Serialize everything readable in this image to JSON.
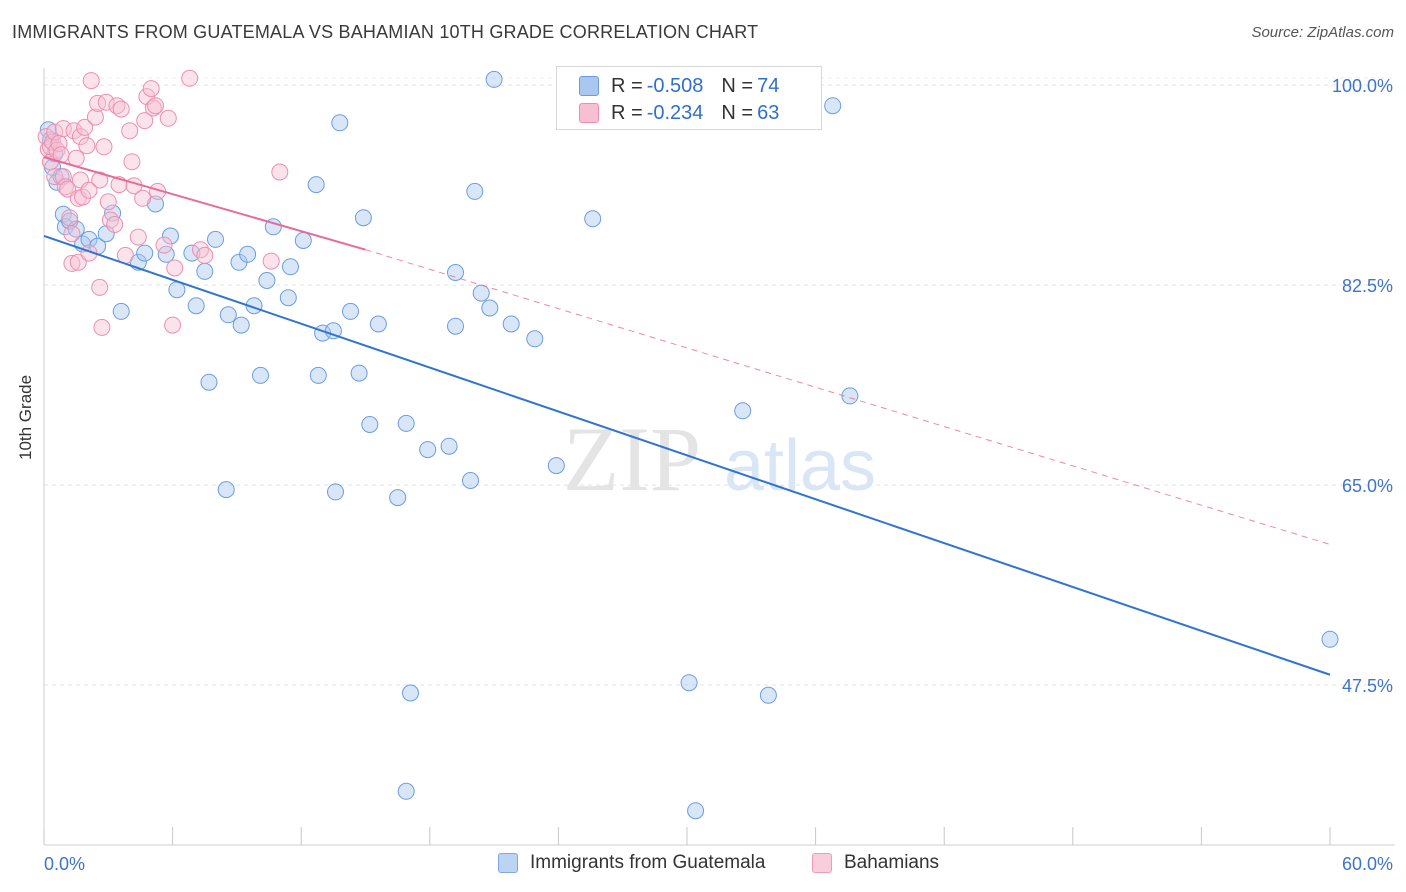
{
  "header": {
    "title": "IMMIGRANTS FROM GUATEMALA VS BAHAMIAN 10TH GRADE CORRELATION CHART",
    "source": "Source: ZipAtlas.com"
  },
  "watermark": {
    "zip": "ZIP",
    "atlas": "atlas"
  },
  "legend": {
    "r_label": "R =",
    "n_label": "N =",
    "entries": [
      {
        "r": "-0.508",
        "n": "74",
        "color": "#a9c7ef",
        "stroke": "#6a9ee0"
      },
      {
        "r": "-0.234",
        "n": "63",
        "color": "#f7c0d2",
        "stroke": "#ee8fb0"
      }
    ]
  },
  "bottom_legend": [
    "Immigrants from Guatemala",
    "Bahamians"
  ],
  "chart_data": {
    "type": "scatter",
    "title": "IMMIGRANTS FROM GUATEMALA VS BAHAMIAN 10TH GRADE CORRELATION CHART",
    "xlabel": "",
    "ylabel": "10th Grade",
    "xlim": [
      0,
      60
    ],
    "ylim": [
      33.5,
      101.5
    ],
    "x_tick_labels": [
      "0.0%",
      "60.0%"
    ],
    "y_ticks": [
      47.5,
      65.0,
      82.5,
      100.0
    ],
    "y_tick_labels": [
      "47.5%",
      "65.0%",
      "82.5%",
      "100.0%"
    ],
    "grid": true,
    "legend_position": "top-center",
    "series": [
      {
        "name": "Immigrants from Guatemala",
        "color": "#a9c7ef",
        "line_color": "#2f74d0",
        "r": -0.508,
        "n": 74,
        "trend": {
          "x": [
            0,
            60
          ],
          "y": [
            86.8,
            48.4
          ]
        },
        "points": [
          [
            0.2,
            96.1
          ],
          [
            0.3,
            95.2
          ],
          [
            0.4,
            92.8
          ],
          [
            0.6,
            91.5
          ],
          [
            0.8,
            92.0
          ],
          [
            0.9,
            88.7
          ],
          [
            1.0,
            87.6
          ],
          [
            1.2,
            88.1
          ],
          [
            1.5,
            87.4
          ],
          [
            1.8,
            86.1
          ],
          [
            2.1,
            86.5
          ],
          [
            2.5,
            85.9
          ],
          [
            2.9,
            87.0
          ],
          [
            3.2,
            88.8
          ],
          [
            3.6,
            80.2
          ],
          [
            4.4,
            84.5
          ],
          [
            4.7,
            85.3
          ],
          [
            5.2,
            89.6
          ],
          [
            5.7,
            85.2
          ],
          [
            5.9,
            86.8
          ],
          [
            6.2,
            82.1
          ],
          [
            6.9,
            85.3
          ],
          [
            7.1,
            80.7
          ],
          [
            7.5,
            83.7
          ],
          [
            7.7,
            74.0
          ],
          [
            8.0,
            86.5
          ],
          [
            8.5,
            64.6
          ],
          [
            8.6,
            79.9
          ],
          [
            9.1,
            84.5
          ],
          [
            9.2,
            79.0
          ],
          [
            9.5,
            85.2
          ],
          [
            9.8,
            80.7
          ],
          [
            10.1,
            74.6
          ],
          [
            10.4,
            82.9
          ],
          [
            10.7,
            87.6
          ],
          [
            11.4,
            81.4
          ],
          [
            11.5,
            84.1
          ],
          [
            12.1,
            86.4
          ],
          [
            12.7,
            91.3
          ],
          [
            12.8,
            74.6
          ],
          [
            13.0,
            78.3
          ],
          [
            13.5,
            78.5
          ],
          [
            13.6,
            64.4
          ],
          [
            13.8,
            96.7
          ],
          [
            14.3,
            80.2
          ],
          [
            14.7,
            74.8
          ],
          [
            14.9,
            88.4
          ],
          [
            15.2,
            70.3
          ],
          [
            15.6,
            79.1
          ],
          [
            16.5,
            63.9
          ],
          [
            16.9,
            70.4
          ],
          [
            16.9,
            38.2
          ],
          [
            17.1,
            46.8
          ],
          [
            17.9,
            68.1
          ],
          [
            18.9,
            68.4
          ],
          [
            19.2,
            83.6
          ],
          [
            19.2,
            78.9
          ],
          [
            19.9,
            65.4
          ],
          [
            20.1,
            90.7
          ],
          [
            20.4,
            81.8
          ],
          [
            20.8,
            80.5
          ],
          [
            21.0,
            100.5
          ],
          [
            21.8,
            79.1
          ],
          [
            22.9,
            77.8
          ],
          [
            23.9,
            66.7
          ],
          [
            25.6,
            88.3
          ],
          [
            30.1,
            47.7
          ],
          [
            30.4,
            36.5
          ],
          [
            32.6,
            71.5
          ],
          [
            33.8,
            46.6
          ],
          [
            36.8,
            98.2
          ],
          [
            37.6,
            72.8
          ],
          [
            60.0,
            51.5
          ],
          [
            0.5,
            94.0
          ]
        ]
      },
      {
        "name": "Bahamians",
        "color": "#f7c0d2",
        "line_color": "#e86a98",
        "r": -0.234,
        "n": 63,
        "trend": {
          "x": [
            0,
            15
          ],
          "y": [
            93.7,
            85.6
          ]
        },
        "trend_dashed": {
          "x": [
            15,
            60
          ],
          "y": [
            85.6,
            59.8
          ]
        },
        "points": [
          [
            0.1,
            95.5
          ],
          [
            0.2,
            94.4
          ],
          [
            0.3,
            93.3
          ],
          [
            0.3,
            94.6
          ],
          [
            0.4,
            95.0
          ],
          [
            0.5,
            92.0
          ],
          [
            0.5,
            95.9
          ],
          [
            0.6,
            94.3
          ],
          [
            0.7,
            94.9
          ],
          [
            0.8,
            93.9
          ],
          [
            0.9,
            96.2
          ],
          [
            0.9,
            92.0
          ],
          [
            1.0,
            91.1
          ],
          [
            1.1,
            90.9
          ],
          [
            1.2,
            88.4
          ],
          [
            1.3,
            87.0
          ],
          [
            1.3,
            84.4
          ],
          [
            1.4,
            96.0
          ],
          [
            1.5,
            93.6
          ],
          [
            1.6,
            90.1
          ],
          [
            1.6,
            84.5
          ],
          [
            1.7,
            95.5
          ],
          [
            1.7,
            91.7
          ],
          [
            1.8,
            90.2
          ],
          [
            1.9,
            96.3
          ],
          [
            2.0,
            94.7
          ],
          [
            2.1,
            90.8
          ],
          [
            2.1,
            85.3
          ],
          [
            2.2,
            100.4
          ],
          [
            2.4,
            97.2
          ],
          [
            2.5,
            98.4
          ],
          [
            2.6,
            91.7
          ],
          [
            2.6,
            82.3
          ],
          [
            2.7,
            78.8
          ],
          [
            2.8,
            94.6
          ],
          [
            2.9,
            98.5
          ],
          [
            3.0,
            89.8
          ],
          [
            3.1,
            88.2
          ],
          [
            3.3,
            87.8
          ],
          [
            3.4,
            98.2
          ],
          [
            3.5,
            91.3
          ],
          [
            3.6,
            97.9
          ],
          [
            3.8,
            85.1
          ],
          [
            4.0,
            96.0
          ],
          [
            4.1,
            93.3
          ],
          [
            4.2,
            91.2
          ],
          [
            4.4,
            86.7
          ],
          [
            4.6,
            90.1
          ],
          [
            4.7,
            96.9
          ],
          [
            4.8,
            99.0
          ],
          [
            5.0,
            99.7
          ],
          [
            5.1,
            98.0
          ],
          [
            5.2,
            98.2
          ],
          [
            5.3,
            90.7
          ],
          [
            5.6,
            86.0
          ],
          [
            5.8,
            97.1
          ],
          [
            6.0,
            79.0
          ],
          [
            6.1,
            84.0
          ],
          [
            6.8,
            100.6
          ],
          [
            7.3,
            85.6
          ],
          [
            7.5,
            85.1
          ],
          [
            10.6,
            84.6
          ],
          [
            11.0,
            92.4
          ]
        ]
      }
    ]
  }
}
